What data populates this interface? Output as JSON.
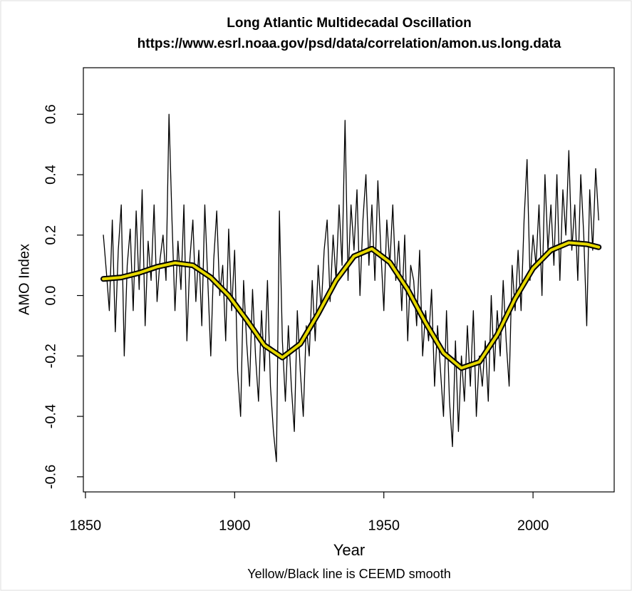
{
  "chart_data": {
    "type": "line",
    "title": "Long Atlantic Multidecadal Oscillation",
    "subtitle": "https://www.esrl.noaa.gov/psd/data/correlation/amon.us.long.data",
    "xlabel": "Year",
    "ylabel": "AMO Index",
    "caption": "Yellow/Black line is CEEMD smooth",
    "xlim": [
      1849.3,
      2027.2
    ],
    "ylim": [
      -0.65,
      0.754
    ],
    "xticks": [
      1850,
      1900,
      1950,
      2000
    ],
    "yticks": [
      -0.6,
      -0.4,
      -0.2,
      {
        "value": 0,
        "label": "0.0"
      },
      0.2,
      0.4,
      0.6
    ],
    "series": [
      {
        "color": "#000000",
        "x": [
          1856,
          1857,
          1858,
          1859,
          1860,
          1861,
          1862,
          1863,
          1864,
          1865,
          1866,
          1867,
          1868,
          1869,
          1870,
          1871,
          1872,
          1873,
          1874,
          1875,
          1876,
          1877,
          1878,
          1879,
          1880,
          1881,
          1882,
          1883,
          1884,
          1885,
          1886,
          1887,
          1888,
          1889,
          1890,
          1891,
          1892,
          1893,
          1894,
          1895,
          1896,
          1897,
          1898,
          1899,
          1900,
          1901,
          1902,
          1903,
          1904,
          1905,
          1906,
          1907,
          1908,
          1909,
          1910,
          1911,
          1912,
          1913,
          1914,
          1915,
          1916,
          1917,
          1918,
          1919,
          1920,
          1921,
          1922,
          1923,
          1924,
          1925,
          1926,
          1927,
          1928,
          1929,
          1930,
          1931,
          1932,
          1933,
          1934,
          1935,
          1936,
          1937,
          1938,
          1939,
          1940,
          1941,
          1942,
          1943,
          1944,
          1945,
          1946,
          1947,
          1948,
          1949,
          1950,
          1951,
          1952,
          1953,
          1954,
          1955,
          1956,
          1957,
          1958,
          1959,
          1960,
          1961,
          1962,
          1963,
          1964,
          1965,
          1966,
          1967,
          1968,
          1969,
          1970,
          1971,
          1972,
          1973,
          1974,
          1975,
          1976,
          1977,
          1978,
          1979,
          1980,
          1981,
          1982,
          1983,
          1984,
          1985,
          1986,
          1987,
          1988,
          1989,
          1990,
          1991,
          1992,
          1993,
          1994,
          1995,
          1996,
          1997,
          1998,
          1999,
          2000,
          2001,
          2002,
          2003,
          2004,
          2005,
          2006,
          2007,
          2008,
          2009,
          2010,
          2011,
          2012,
          2013,
          2014,
          2015,
          2016,
          2017,
          2018,
          2019,
          2020,
          2021,
          2022
        ],
        "values": [
          0.2,
          0.08,
          -0.05,
          0.25,
          -0.12,
          0.15,
          0.3,
          -0.2,
          0.1,
          0.22,
          -0.05,
          0.28,
          0.02,
          0.35,
          -0.1,
          0.18,
          0.05,
          0.3,
          -0.02,
          0.12,
          0.2,
          0.05,
          0.6,
          0.25,
          -0.05,
          0.18,
          0.02,
          0.3,
          -0.15,
          0.12,
          0.25,
          -0.02,
          0.15,
          -0.1,
          0.3,
          0.05,
          -0.2,
          0.12,
          0.28,
          0.0,
          0.1,
          -0.15,
          0.22,
          -0.05,
          0.15,
          -0.25,
          -0.4,
          0.05,
          -0.15,
          -0.3,
          0.02,
          -0.2,
          -0.35,
          -0.05,
          -0.25,
          0.05,
          -0.3,
          -0.45,
          -0.55,
          0.28,
          -0.15,
          -0.35,
          -0.1,
          -0.3,
          -0.45,
          -0.05,
          -0.25,
          -0.4,
          -0.1,
          -0.2,
          0.05,
          -0.15,
          0.1,
          -0.05,
          0.15,
          0.25,
          -0.02,
          0.2,
          0.05,
          0.3,
          0.1,
          0.58,
          0.05,
          0.3,
          0.15,
          0.35,
          0.0,
          0.25,
          0.4,
          0.1,
          0.3,
          0.05,
          0.38,
          0.15,
          -0.05,
          0.25,
          0.1,
          0.3,
          0.05,
          0.18,
          -0.05,
          0.2,
          -0.15,
          0.1,
          0.05,
          -0.1,
          0.15,
          -0.2,
          -0.05,
          -0.15,
          0.02,
          -0.3,
          -0.1,
          -0.25,
          -0.4,
          -0.05,
          -0.35,
          -0.5,
          -0.15,
          -0.45,
          -0.2,
          -0.35,
          -0.1,
          -0.3,
          -0.05,
          -0.4,
          -0.2,
          -0.3,
          -0.15,
          -0.35,
          0.0,
          -0.25,
          -0.05,
          -0.2,
          0.05,
          -0.15,
          -0.3,
          0.1,
          -0.05,
          0.15,
          -0.05,
          0.25,
          0.45,
          0.05,
          0.2,
          0.1,
          0.3,
          0.0,
          0.4,
          0.15,
          0.3,
          0.1,
          0.4,
          0.05,
          0.35,
          0.2,
          0.48,
          0.15,
          0.3,
          0.05,
          0.4,
          0.2,
          -0.1,
          0.35,
          0.15,
          0.42,
          0.25
        ]
      },
      {
        "color": "#e6d800",
        "outline": "#000000",
        "x": [
          1856,
          1862,
          1868,
          1874,
          1880,
          1886,
          1892,
          1898,
          1904,
          1910,
          1916,
          1922,
          1928,
          1934,
          1940,
          1946,
          1952,
          1958,
          1964,
          1970,
          1976,
          1982,
          1988,
          1994,
          2000,
          2006,
          2012,
          2018,
          2022
        ],
        "values": [
          0.055,
          0.06,
          0.075,
          0.095,
          0.108,
          0.1,
          0.06,
          0.0,
          -0.08,
          -0.165,
          -0.205,
          -0.16,
          -0.06,
          0.05,
          0.13,
          0.155,
          0.11,
          0.02,
          -0.09,
          -0.19,
          -0.24,
          -0.22,
          -0.13,
          -0.01,
          0.09,
          0.15,
          0.175,
          0.17,
          0.16
        ]
      }
    ]
  }
}
